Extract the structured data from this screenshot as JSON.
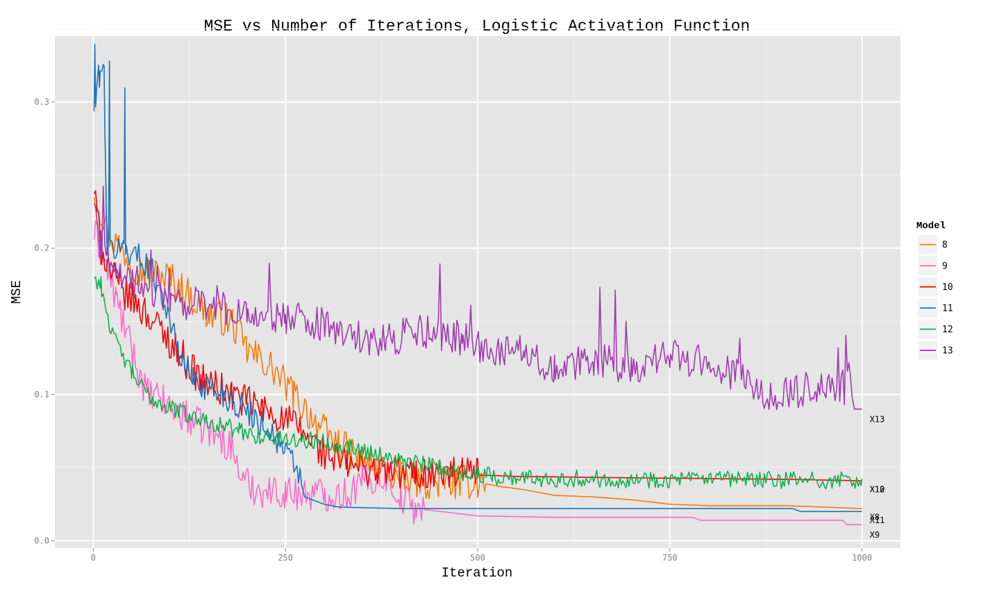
{
  "chart_data": {
    "type": "line",
    "title": "MSE vs Number of Iterations, Logistic Activation Function",
    "xlabel": "Iteration",
    "ylabel": "MSE",
    "xlim": [
      -50,
      1050
    ],
    "ylim": [
      -0.005,
      0.345
    ],
    "x_ticks": [
      0,
      250,
      500,
      750,
      1000
    ],
    "x_tick_labels": [
      "0",
      "250",
      "500",
      "750",
      "1000"
    ],
    "y_ticks": [
      0.0,
      0.1,
      0.2,
      0.3
    ],
    "y_tick_labels": [
      "0.0",
      "0.1",
      "0.2",
      "0.3"
    ],
    "grid": true,
    "legend": {
      "title": "Model",
      "position": "right"
    },
    "series": [
      {
        "name": "8",
        "color": "#F8790B",
        "noise": 0.012,
        "noise_until": 510,
        "jumpy": false,
        "points": [
          [
            1,
            0.24
          ],
          [
            20,
            0.21
          ],
          [
            60,
            0.185
          ],
          [
            100,
            0.18
          ],
          [
            150,
            0.155
          ],
          [
            180,
            0.15
          ],
          [
            200,
            0.13
          ],
          [
            230,
            0.12
          ],
          [
            260,
            0.1
          ],
          [
            300,
            0.075
          ],
          [
            320,
            0.065
          ],
          [
            350,
            0.055
          ],
          [
            400,
            0.042
          ],
          [
            450,
            0.04
          ],
          [
            500,
            0.04
          ],
          [
            530,
            0.037
          ],
          [
            560,
            0.035
          ],
          [
            600,
            0.031
          ],
          [
            650,
            0.03
          ],
          [
            700,
            0.028
          ],
          [
            750,
            0.025
          ],
          [
            800,
            0.024
          ],
          [
            900,
            0.024
          ],
          [
            1000,
            0.022
          ]
        ]
      },
      {
        "name": "9",
        "color": "#FF69C8",
        "noise": 0.012,
        "noise_until": 430,
        "jumpy": false,
        "points": [
          [
            1,
            0.21
          ],
          [
            10,
            0.2
          ],
          [
            30,
            0.165
          ],
          [
            50,
            0.13
          ],
          [
            70,
            0.1
          ],
          [
            90,
            0.095
          ],
          [
            120,
            0.085
          ],
          [
            150,
            0.075
          ],
          [
            180,
            0.065
          ],
          [
            195,
            0.04
          ],
          [
            220,
            0.034
          ],
          [
            250,
            0.033
          ],
          [
            300,
            0.032
          ],
          [
            330,
            0.032
          ],
          [
            350,
            0.04
          ],
          [
            380,
            0.045
          ],
          [
            400,
            0.03
          ],
          [
            420,
            0.022
          ],
          [
            500,
            0.017
          ],
          [
            600,
            0.016
          ],
          [
            780,
            0.016
          ],
          [
            790,
            0.014
          ],
          [
            900,
            0.014
          ],
          [
            975,
            0.014
          ],
          [
            980,
            0.011
          ],
          [
            1000,
            0.011
          ]
        ]
      },
      {
        "name": "10",
        "color": "#F20000",
        "noise": 0.012,
        "noise_until": 500,
        "jumpy": false,
        "points": [
          [
            1,
            0.24
          ],
          [
            10,
            0.2
          ],
          [
            30,
            0.175
          ],
          [
            70,
            0.155
          ],
          [
            110,
            0.13
          ],
          [
            140,
            0.11
          ],
          [
            180,
            0.1
          ],
          [
            220,
            0.09
          ],
          [
            260,
            0.08
          ],
          [
            300,
            0.06
          ],
          [
            330,
            0.052
          ],
          [
            370,
            0.048
          ],
          [
            420,
            0.046
          ],
          [
            480,
            0.045
          ],
          [
            500,
            0.045
          ],
          [
            550,
            0.044
          ],
          [
            700,
            0.043
          ],
          [
            900,
            0.042
          ],
          [
            1000,
            0.041
          ]
        ]
      },
      {
        "name": "11",
        "color": "#1A72BC",
        "noise": 0.01,
        "noise_until": 270,
        "jumpy": false,
        "points": [
          [
            1,
            0.295
          ],
          [
            2,
            0.335
          ],
          [
            3,
            0.3
          ],
          [
            8,
            0.32
          ],
          [
            14,
            0.32
          ],
          [
            18,
            0.2
          ],
          [
            20,
            0.2
          ],
          [
            21,
            0.32
          ],
          [
            22,
            0.2
          ],
          [
            40,
            0.2
          ],
          [
            41,
            0.31
          ],
          [
            42,
            0.2
          ],
          [
            70,
            0.19
          ],
          [
            90,
            0.17
          ],
          [
            110,
            0.13
          ],
          [
            130,
            0.11
          ],
          [
            170,
            0.1
          ],
          [
            210,
            0.085
          ],
          [
            230,
            0.075
          ],
          [
            250,
            0.06
          ],
          [
            265,
            0.05
          ],
          [
            275,
            0.03
          ],
          [
            300,
            0.025
          ],
          [
            310,
            0.024
          ],
          [
            320,
            0.023
          ],
          [
            400,
            0.022
          ],
          [
            600,
            0.022
          ],
          [
            910,
            0.022
          ],
          [
            920,
            0.02
          ],
          [
            1000,
            0.02
          ]
        ]
      },
      {
        "name": "12",
        "color": "#0DB14B",
        "noise": 0.006,
        "noise_until": 1000,
        "jumpy": false,
        "points": [
          [
            1,
            0.18
          ],
          [
            10,
            0.175
          ],
          [
            25,
            0.14
          ],
          [
            50,
            0.115
          ],
          [
            70,
            0.1
          ],
          [
            90,
            0.093
          ],
          [
            130,
            0.085
          ],
          [
            160,
            0.08
          ],
          [
            190,
            0.075
          ],
          [
            230,
            0.07
          ],
          [
            300,
            0.068
          ],
          [
            350,
            0.062
          ],
          [
            400,
            0.055
          ],
          [
            450,
            0.05
          ],
          [
            500,
            0.045
          ],
          [
            550,
            0.043
          ],
          [
            700,
            0.042
          ],
          [
            1000,
            0.041
          ]
        ]
      },
      {
        "name": "13",
        "color": "#A03BAE",
        "noise": 0.012,
        "noise_until": 985,
        "jumpy": true,
        "points": [
          [
            1,
            0.23
          ],
          [
            10,
            0.2
          ],
          [
            30,
            0.185
          ],
          [
            60,
            0.175
          ],
          [
            100,
            0.165
          ],
          [
            150,
            0.16
          ],
          [
            200,
            0.155
          ],
          [
            250,
            0.15
          ],
          [
            300,
            0.148
          ],
          [
            340,
            0.142
          ],
          [
            380,
            0.135
          ],
          [
            420,
            0.145
          ],
          [
            480,
            0.138
          ],
          [
            520,
            0.128
          ],
          [
            560,
            0.13
          ],
          [
            600,
            0.115
          ],
          [
            650,
            0.125
          ],
          [
            700,
            0.118
          ],
          [
            750,
            0.128
          ],
          [
            800,
            0.12
          ],
          [
            850,
            0.11
          ],
          [
            880,
            0.098
          ],
          [
            940,
            0.105
          ],
          [
            985,
            0.105
          ],
          [
            990,
            0.09
          ],
          [
            1000,
            0.09
          ]
        ]
      }
    ],
    "end_labels": [
      {
        "text": "X13",
        "x": 1010,
        "y": 0.083
      },
      {
        "text": "X10",
        "x": 1010,
        "y": 0.035
      },
      {
        "text": "X12",
        "x": 1010,
        "y": 0.035
      },
      {
        "text": "X8",
        "x": 1010,
        "y": 0.016
      },
      {
        "text": "X11",
        "x": 1010,
        "y": 0.014
      },
      {
        "text": "X9",
        "x": 1010,
        "y": 0.004
      }
    ]
  },
  "colors": {
    "panel_bg": "#E5E5E5",
    "grid_major": "#FFFFFF",
    "grid_minor": "#F2F2F2",
    "legend_key_bg": "#F2F2F2"
  }
}
